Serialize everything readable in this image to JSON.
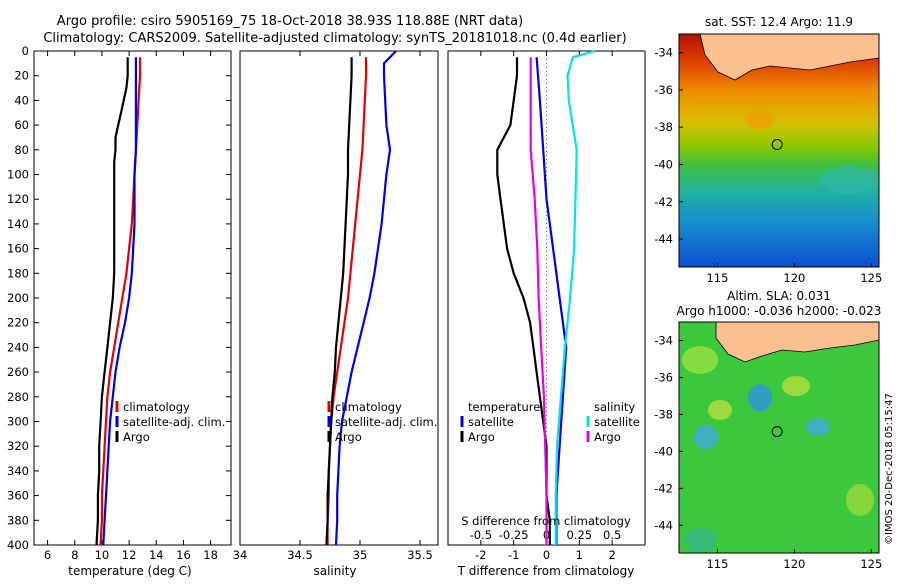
{
  "header": {
    "title_line1": "Argo profile: csiro 5905169_75 18-Oct-2018 38.93S 118.88E (NRT data)",
    "title_line2": "Climatology: CARS2009. Satellite-adjusted climatology: synTS_20181018.nc (0.4d earlier)"
  },
  "stamp": "©IMOS 20-Dec-2018 05:15:47",
  "colors": {
    "climatology": "#e60000",
    "satellite": "#0000e6",
    "argo": "#000000",
    "satellite_s": "#00e6e6",
    "argo_s": "#e600e6"
  },
  "chart_data": [
    {
      "type": "line",
      "name": "temperature-profile",
      "xlabel": "temperature (deg C)",
      "ylabel": "depth",
      "xlim": [
        5,
        19.5
      ],
      "ylim": [
        400,
        0
      ],
      "xticks": [
        6,
        8,
        10,
        12,
        14,
        16,
        18
      ],
      "yticks": [
        0,
        20,
        40,
        60,
        80,
        100,
        120,
        140,
        160,
        180,
        200,
        220,
        240,
        260,
        280,
        300,
        320,
        340,
        360,
        380,
        400
      ],
      "legend": [
        "climatology",
        "satellite-adj. clim.",
        "Argo"
      ],
      "series": [
        {
          "name": "climatology",
          "color": "#e60000",
          "depth": [
            5,
            20,
            40,
            60,
            80,
            100,
            120,
            140,
            160,
            180,
            200,
            220,
            240,
            260,
            280,
            300,
            320,
            340,
            360,
            380,
            400
          ],
          "values": [
            12.8,
            12.8,
            12.7,
            12.6,
            12.5,
            12.4,
            12.3,
            12.2,
            12.0,
            11.8,
            11.5,
            11.2,
            10.9,
            10.6,
            10.4,
            10.3,
            10.2,
            10.1,
            10.0,
            10.0,
            9.9
          ]
        },
        {
          "name": "satellite-adj. clim.",
          "color": "#0000e6",
          "depth": [
            5,
            20,
            40,
            60,
            80,
            100,
            120,
            140,
            160,
            180,
            200,
            220,
            240,
            260,
            280,
            300,
            320,
            340,
            360,
            380,
            400
          ],
          "values": [
            12.5,
            12.5,
            12.5,
            12.5,
            12.5,
            12.4,
            12.4,
            12.4,
            12.3,
            12.2,
            12.0,
            11.7,
            11.3,
            11.0,
            10.8,
            10.6,
            10.5,
            10.4,
            10.3,
            10.2,
            10.1
          ]
        },
        {
          "name": "Argo",
          "color": "#000000",
          "depth": [
            5,
            20,
            30,
            40,
            50,
            60,
            70,
            80,
            90,
            100,
            120,
            140,
            160,
            180,
            200,
            220,
            240,
            260,
            280,
            300,
            320,
            340,
            360,
            380,
            400
          ],
          "values": [
            11.9,
            11.9,
            11.8,
            11.6,
            11.4,
            11.2,
            11.0,
            11.0,
            10.9,
            10.9,
            10.9,
            10.9,
            10.9,
            10.9,
            10.8,
            10.6,
            10.4,
            10.2,
            10.0,
            9.9,
            9.8,
            9.8,
            9.7,
            9.7,
            9.6
          ]
        }
      ]
    },
    {
      "type": "line",
      "name": "salinity-profile",
      "xlabel": "salinity",
      "ylabel": "depth",
      "xlim": [
        34.0,
        35.65
      ],
      "ylim": [
        400,
        0
      ],
      "xticks": [
        34,
        34.5,
        35,
        35.5
      ],
      "legend": [
        "climatology",
        "satellite-adj. clim.",
        "Argo"
      ],
      "series": [
        {
          "name": "climatology",
          "color": "#e60000",
          "depth": [
            5,
            20,
            40,
            60,
            80,
            100,
            120,
            140,
            160,
            180,
            200,
            220,
            240,
            260,
            280,
            300,
            320,
            340,
            360,
            380,
            400
          ],
          "values": [
            35.05,
            35.05,
            35.04,
            35.03,
            35.02,
            35.0,
            34.98,
            34.96,
            34.94,
            34.92,
            34.9,
            34.87,
            34.84,
            34.81,
            34.78,
            34.76,
            34.75,
            34.74,
            34.74,
            34.73,
            34.73
          ]
        },
        {
          "name": "satellite-adj. clim.",
          "color": "#0000e6",
          "depth": [
            0,
            5,
            10,
            20,
            40,
            60,
            80,
            100,
            120,
            140,
            160,
            180,
            200,
            220,
            240,
            260,
            280,
            300,
            320,
            340,
            360,
            380,
            400
          ],
          "values": [
            35.3,
            35.25,
            35.2,
            35.2,
            35.21,
            35.22,
            35.25,
            35.22,
            35.2,
            35.18,
            35.15,
            35.12,
            35.08,
            35.03,
            34.98,
            34.93,
            34.89,
            34.85,
            34.83,
            34.82,
            34.81,
            34.81,
            34.8
          ]
        },
        {
          "name": "Argo",
          "color": "#000000",
          "depth": [
            5,
            20,
            40,
            60,
            80,
            100,
            120,
            140,
            160,
            180,
            200,
            220,
            240,
            260,
            280,
            300,
            320,
            340,
            360,
            380,
            400
          ],
          "values": [
            34.93,
            34.93,
            34.92,
            34.91,
            34.9,
            34.9,
            34.89,
            34.88,
            34.87,
            34.86,
            34.84,
            34.82,
            34.8,
            34.79,
            34.77,
            34.76,
            34.75,
            34.74,
            34.73,
            34.73,
            34.72
          ]
        }
      ]
    },
    {
      "type": "line",
      "name": "difference-profile",
      "xlabel": "T difference from climatology",
      "xlabel2": "S difference from climatology",
      "ylabel": "depth",
      "xlim": [
        -3,
        3
      ],
      "ylim": [
        400,
        0
      ],
      "xticks_T": [
        -2,
        -1,
        0,
        1,
        2
      ],
      "xticks_S": [
        "-0.5",
        "-0.25",
        "0",
        "0.25",
        "0.5"
      ],
      "legend_temperature": {
        "title": "temperature",
        "items": [
          "satellite",
          "Argo"
        ]
      },
      "legend_salinity": {
        "title": "salinity",
        "items": [
          "satellite",
          "Argo"
        ]
      },
      "series": [
        {
          "name": "T satellite",
          "color": "#0000e6",
          "depth": [
            5,
            40,
            80,
            120,
            160,
            200,
            240,
            280,
            320,
            360,
            400
          ],
          "values": [
            -0.3,
            -0.2,
            -0.1,
            0.0,
            0.2,
            0.4,
            0.6,
            0.5,
            0.4,
            0.3,
            0.3
          ]
        },
        {
          "name": "T Argo",
          "color": "#000000",
          "depth": [
            5,
            20,
            40,
            60,
            80,
            100,
            120,
            140,
            160,
            180,
            200,
            220,
            240,
            260,
            280,
            300,
            320,
            340,
            360,
            380,
            400
          ],
          "values": [
            -0.9,
            -0.9,
            -1.0,
            -1.1,
            -1.5,
            -1.5,
            -1.4,
            -1.3,
            -1.2,
            -1.0,
            -0.7,
            -0.5,
            -0.4,
            -0.3,
            -0.2,
            -0.1,
            0.0,
            0.0,
            0.0,
            0.1,
            0.1
          ]
        },
        {
          "name": "S satellite",
          "color": "#00e6e6",
          "depth": [
            0,
            5,
            20,
            40,
            80,
            120,
            160,
            200,
            240,
            280,
            320,
            360,
            400
          ],
          "values": [
            0.37,
            0.2,
            0.16,
            0.17,
            0.23,
            0.22,
            0.21,
            0.18,
            0.14,
            0.11,
            0.08,
            0.07,
            0.07
          ]
        },
        {
          "name": "S Argo",
          "color": "#e600e6",
          "depth": [
            5,
            40,
            80,
            120,
            160,
            200,
            240,
            280,
            320,
            360,
            400
          ],
          "values": [
            -0.12,
            -0.12,
            -0.12,
            -0.09,
            -0.07,
            -0.06,
            -0.04,
            -0.02,
            -0.01,
            0.0,
            0.0
          ]
        }
      ]
    },
    {
      "type": "heatmap",
      "name": "sst-map",
      "title": "sat. SST: 12.4 Argo: 11.9",
      "xlim": [
        112.5,
        125.5
      ],
      "ylim": [
        -45.5,
        -33.0
      ],
      "xticks": [
        115,
        120,
        125
      ],
      "yticks": [
        -34,
        -36,
        -38,
        -40,
        -42,
        -44
      ],
      "argo_position": [
        118.88,
        -38.93
      ]
    },
    {
      "type": "heatmap",
      "name": "sla-map",
      "title_line1": "Altim. SLA: 0.031",
      "title_line2": "Argo h1000: -0.036 h2000: -0.023",
      "xlim": [
        112.5,
        125.5
      ],
      "ylim": [
        -45.5,
        -33.0
      ],
      "xticks": [
        115,
        120,
        125
      ],
      "yticks": [
        -34,
        -36,
        -38,
        -40,
        -42,
        -44
      ],
      "argo_position": [
        118.88,
        -38.93
      ]
    }
  ]
}
